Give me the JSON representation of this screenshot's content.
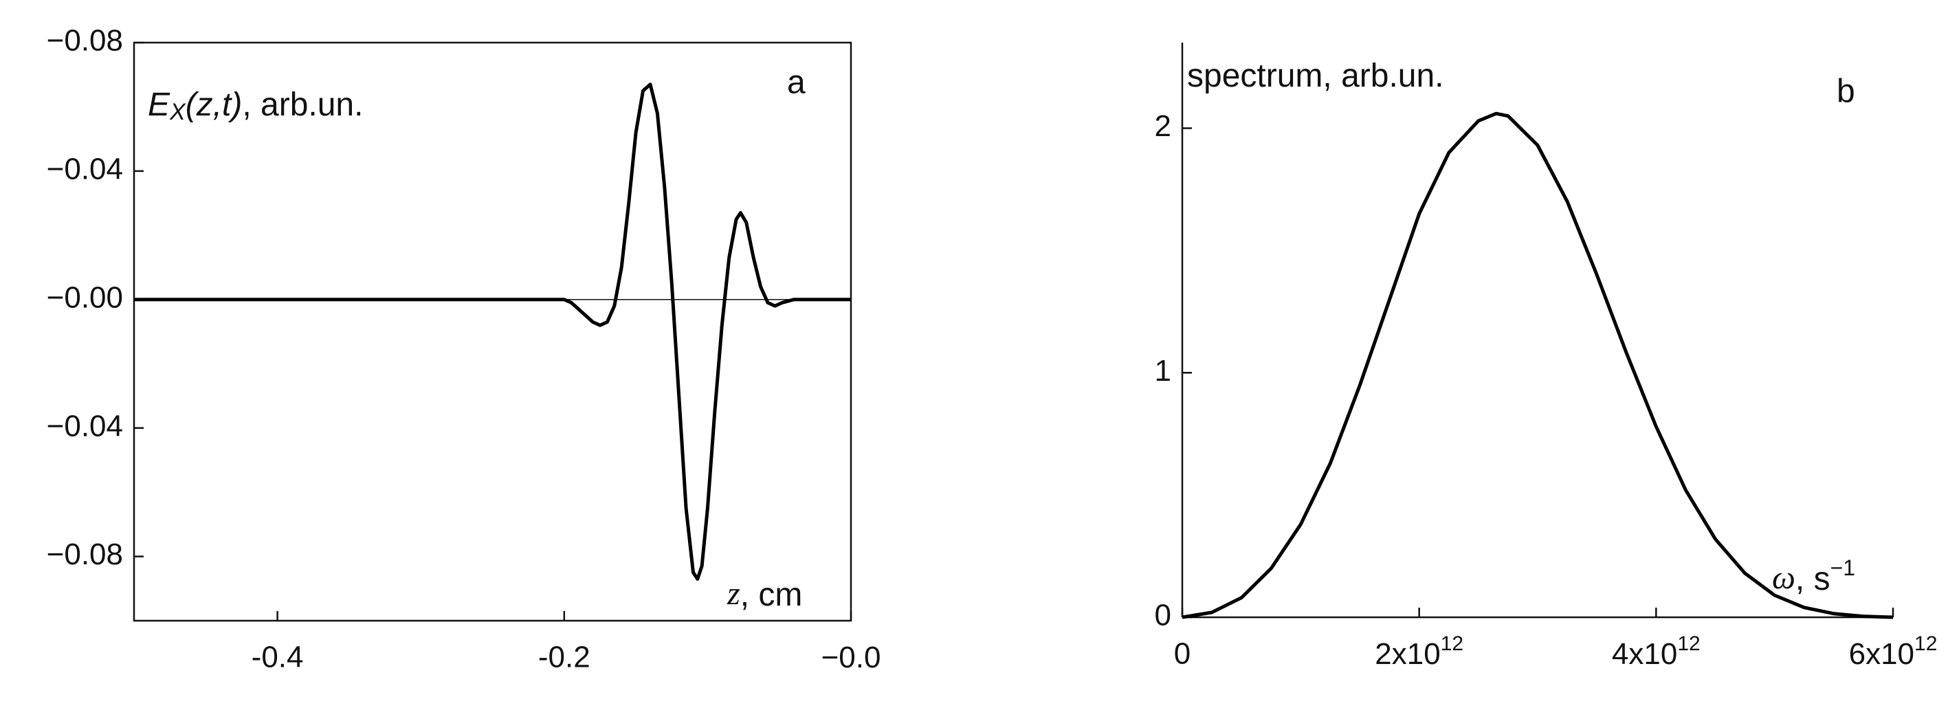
{
  "chart_data": [
    {
      "type": "line",
      "panel_label": "a",
      "y_label": {
        "symbol": "E",
        "subscript": "X",
        "argument": "(z,t)",
        "unit": ", arb.un."
      },
      "x_label": {
        "symbol": "z",
        "unit": ", cm"
      },
      "x": [
        -0.5,
        -0.2,
        -0.195,
        -0.19,
        -0.185,
        -0.18,
        -0.175,
        -0.17,
        -0.165,
        -0.16,
        -0.155,
        -0.15,
        -0.145,
        -0.14,
        -0.135,
        -0.13,
        -0.125,
        -0.12,
        -0.115,
        -0.11,
        -0.107,
        -0.104,
        -0.1,
        -0.095,
        -0.09,
        -0.085,
        -0.08,
        -0.077,
        -0.073,
        -0.068,
        -0.063,
        -0.058,
        -0.053,
        -0.048,
        -0.04,
        0
      ],
      "series": [
        {
          "color": "#000000",
          "values": [
            0,
            0,
            -0.001,
            -0.003,
            -0.005,
            -0.007,
            -0.008,
            -0.007,
            -0.002,
            0.01,
            0.03,
            0.052,
            0.065,
            0.067,
            0.058,
            0.035,
            0.005,
            -0.03,
            -0.065,
            -0.085,
            -0.087,
            -0.083,
            -0.065,
            -0.035,
            -0.008,
            0.013,
            0.025,
            0.027,
            0.024,
            0.013,
            0.004,
            -0.001,
            -0.002,
            -0.001,
            0,
            0
          ]
        }
      ],
      "xlim": [
        -0.5,
        0
      ],
      "xticks": [
        -0.4,
        -0.2,
        {
          "value": 0,
          "label": "−0.0"
        }
      ],
      "ylim": [
        -0.1,
        0.08
      ],
      "yticks": [
        {
          "value": 0.08,
          "label": "−0.08"
        },
        {
          "value": 0.04,
          "label": "−0.04"
        },
        {
          "value": 0,
          "label": "−0.00"
        },
        {
          "value": -0.04,
          "label": "−0.04"
        },
        {
          "value": -0.08,
          "label": "−0.08"
        }
      ],
      "zero_line": true,
      "frame": "box"
    },
    {
      "type": "line",
      "panel_label": "b",
      "y_label": {
        "text": "spectrum, arb.un."
      },
      "x_label": {
        "symbol": "ω",
        "unit": ", s",
        "exponent": "−1"
      },
      "x": [
        0,
        250000000000.0,
        500000000000.0,
        750000000000.0,
        1000000000000.0,
        1250000000000.0,
        1500000000000.0,
        1750000000000.0,
        2000000000000.0,
        2250000000000.0,
        2500000000000.0,
        2650000000000.0,
        2750000000000.0,
        3000000000000.0,
        3250000000000.0,
        3500000000000.0,
        3750000000000.0,
        4000000000000.0,
        4250000000000.0,
        4500000000000.0,
        4750000000000.0,
        5000000000000.0,
        5250000000000.0,
        5500000000000.0,
        5750000000000.0,
        6000000000000.0
      ],
      "series": [
        {
          "color": "#000000",
          "values": [
            0,
            0.02,
            0.08,
            0.2,
            0.38,
            0.63,
            0.95,
            1.3,
            1.65,
            1.9,
            2.03,
            2.06,
            2.05,
            1.93,
            1.7,
            1.4,
            1.08,
            0.78,
            0.52,
            0.32,
            0.18,
            0.09,
            0.04,
            0.015,
            0.004,
            0
          ]
        }
      ],
      "xlim": [
        0,
        6000000000000.0
      ],
      "xticks": [
        0,
        {
          "value": 2000000000000.0,
          "label": "2x10",
          "exponent": "12"
        },
        {
          "value": 4000000000000.0,
          "label": "4x10",
          "exponent": "12"
        },
        {
          "value": 6000000000000.0,
          "label": "6x10",
          "exponent": "12"
        }
      ],
      "ylim": [
        0,
        2.35
      ],
      "yticks": [
        0,
        1,
        2
      ],
      "zero_line": false,
      "frame": "axes"
    }
  ]
}
